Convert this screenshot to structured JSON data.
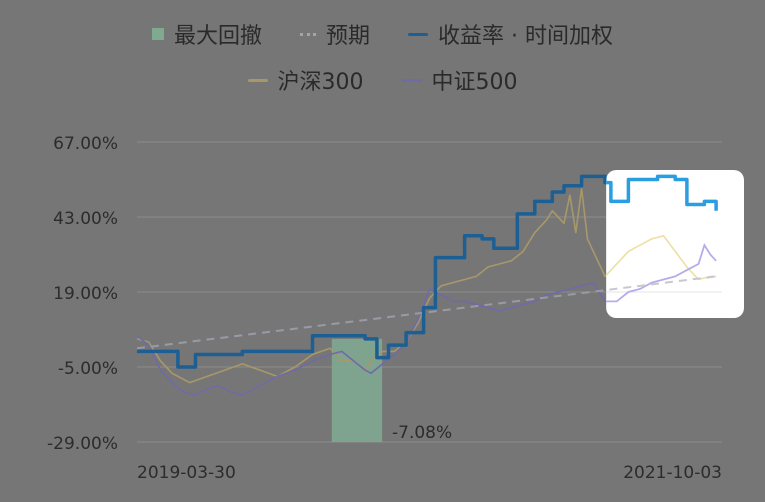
{
  "colors": {
    "background": "#767676",
    "drawdown": "#7fa991",
    "expected": "#9a9aa6",
    "return_rate": "#1d5f93",
    "return_rate_highlight": "#2a9ee0",
    "csi300": "#a7986a",
    "csi500": "#6f6aa8",
    "csi300_highlight": "#eedfa3",
    "csi500_highlight": "#b6acec",
    "gridline": "#8c8c8c"
  },
  "chart_data": {
    "type": "line",
    "legend": {
      "placement": "top-center",
      "entries": [
        "最大回撤",
        "预期",
        "收益率 · 时间加权",
        "沪深300",
        "中证500"
      ]
    },
    "xlim": [
      0,
      100
    ],
    "x_tick_labels": [
      "2019-03-30",
      "2021-10-03"
    ],
    "ylim": [
      -29,
      67
    ],
    "y_ticks": [
      67,
      43,
      19,
      -5,
      -29
    ],
    "y_tick_labels": [
      "67.00%",
      "43.00%",
      "19.00%",
      "-5.00%",
      "-29.00%"
    ],
    "grid": true,
    "max_drawdown": {
      "x_start": 33.3,
      "x_end": 41.9,
      "label": "-7.08%"
    },
    "highlight_region_start_x": 80.2,
    "series": [
      {
        "name": "收益率 · 时间加权",
        "style": "step",
        "x": [
          0,
          7,
          10,
          18,
          22,
          26,
          30,
          36,
          39,
          41,
          43,
          46,
          49,
          51,
          54,
          56,
          58,
          59,
          61,
          62,
          65,
          66,
          68,
          69,
          71,
          73,
          74,
          76,
          78,
          80,
          81,
          82,
          84,
          85,
          89,
          92,
          94,
          95,
          97,
          98,
          99
        ],
        "y": [
          0,
          -5,
          -1,
          0,
          0,
          0,
          5,
          5,
          4,
          -2,
          2,
          6,
          14,
          30,
          30,
          37,
          37,
          36,
          33,
          33,
          44,
          44,
          48,
          48,
          51,
          53,
          53,
          56,
          56,
          54,
          48,
          48,
          55,
          55,
          56,
          55,
          47,
          47,
          48,
          48,
          45
        ]
      },
      {
        "name": "沪深300",
        "x": [
          0,
          2,
          4,
          6,
          9,
          12,
          15,
          18,
          21,
          24,
          27,
          30,
          33,
          35,
          37,
          39,
          40,
          42,
          44,
          46,
          48,
          50,
          52,
          54,
          56,
          58,
          60,
          62,
          64,
          66,
          68,
          70,
          71,
          73,
          74,
          75,
          76,
          77,
          78,
          79,
          80,
          82,
          84,
          86,
          88,
          90,
          92,
          94,
          96,
          98,
          99
        ],
        "y": [
          4,
          3,
          -3,
          -7,
          -10,
          -8,
          -6,
          -4,
          -6,
          -8,
          -5,
          -1,
          1,
          -3,
          -3,
          -6,
          -3,
          0,
          0,
          3,
          9,
          17,
          21,
          22,
          23,
          24,
          27,
          28,
          29,
          32,
          38,
          42,
          45,
          41,
          50,
          38,
          52,
          36,
          32,
          28,
          24,
          28,
          32,
          34,
          36,
          37,
          32,
          27,
          23,
          24,
          24
        ]
      },
      {
        "name": "中证500",
        "x": [
          0,
          2,
          4,
          6,
          8,
          10,
          12,
          14,
          16,
          18,
          20,
          22,
          24,
          27,
          30,
          33,
          35,
          37,
          39,
          40,
          42,
          44,
          46,
          48,
          50,
          52,
          54,
          56,
          58,
          60,
          62,
          64,
          66,
          68,
          70,
          72,
          74,
          76,
          78,
          80,
          82,
          84,
          86,
          88,
          90,
          92,
          94,
          96,
          97,
          98,
          99
        ],
        "y": [
          5,
          2,
          -6,
          -10,
          -13,
          -14,
          -12,
          -11,
          -13,
          -14,
          -12,
          -10,
          -8,
          -6,
          -3,
          -1,
          0,
          -3,
          -6,
          -7,
          -4,
          -1,
          3,
          10,
          20,
          18,
          16,
          16,
          15,
          14,
          13,
          14,
          15,
          16,
          18,
          19,
          20,
          21,
          22,
          16,
          16,
          19,
          20,
          22,
          23,
          24,
          26,
          28,
          34,
          31,
          29
        ]
      },
      {
        "name": "预期",
        "style": "dashed",
        "x": [
          0,
          99
        ],
        "y": [
          1,
          24
        ]
      }
    ]
  }
}
